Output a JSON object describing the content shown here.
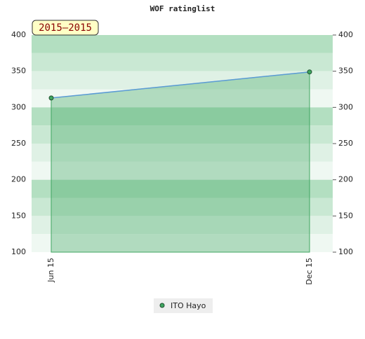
{
  "chart_data": {
    "type": "area",
    "title": "WOF ratinglist",
    "badge": "2015–2015",
    "categories": [
      "Jun 15",
      "Dec 15"
    ],
    "series": [
      {
        "name": "ITO Hayo",
        "color": "#3fa660",
        "line_color": "#5b9bd5",
        "values": [
          313,
          349
        ]
      }
    ],
    "ylim": [
      100,
      400
    ],
    "yticks": [
      100,
      150,
      200,
      250,
      300,
      350,
      400
    ]
  }
}
